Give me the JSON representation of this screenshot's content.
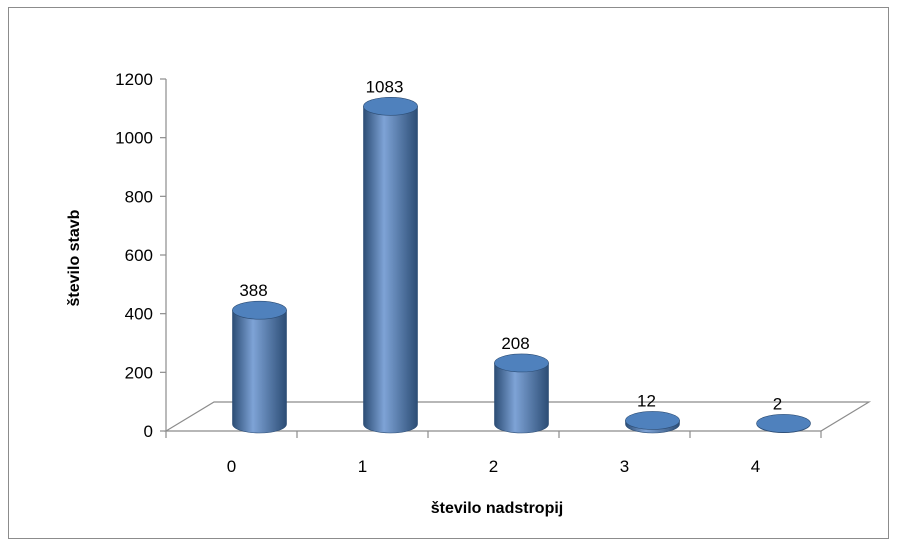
{
  "chart_data": {
    "type": "bar",
    "bar_shape": "cylinder",
    "categories": [
      "0",
      "1",
      "2",
      "3",
      "4"
    ],
    "values": [
      388,
      1083,
      208,
      12,
      2
    ],
    "data_labels": [
      "388",
      "1083",
      "208",
      "12",
      "2"
    ],
    "title": "",
    "xlabel": "število nadstropij",
    "ylabel": "število stavb",
    "ylim": [
      0,
      1200
    ],
    "yticks": [
      "0",
      "200",
      "400",
      "600",
      "800",
      "1000",
      "1200"
    ],
    "grid": false,
    "legend": "none",
    "colors": {
      "bar": "#4f81bd",
      "bar_dark": "#2c4d75",
      "bar_light": "#7ea3d6",
      "axis": "#8c8c8c"
    }
  }
}
